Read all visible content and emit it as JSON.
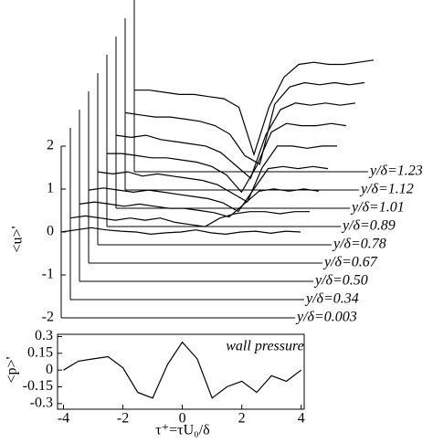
{
  "chart_data": [
    {
      "type": "waterfall",
      "ylabel": "<u>'",
      "x": [
        -4,
        -3.5,
        -3,
        -2.5,
        -2,
        -1.5,
        -1,
        -0.5,
        0,
        0.5,
        1,
        1.5,
        2,
        2.5,
        3,
        3.5,
        4
      ],
      "xlim": [
        -4,
        4
      ],
      "ylim": [
        -2,
        2
      ],
      "yticks": [
        -2,
        -1,
        0,
        1,
        2
      ],
      "color": "#000000",
      "series": [
        {
          "name": "y/δ=0.003",
          "values": [
            0,
            0.05,
            0.1,
            0.05,
            0.02,
            0,
            -0.05,
            -0.02,
            0,
            0.05,
            -0.02,
            -0.05,
            0,
            0.02,
            -0.03,
            0.02,
            0
          ]
        },
        {
          "name": "y/δ=0.34",
          "values": [
            -0.1,
            -0.05,
            -0.1,
            -0.15,
            -0.1,
            -0.15,
            -0.1,
            -0.2,
            -0.25,
            -0.3,
            -0.1,
            0,
            0.05,
            0.05,
            0,
            0.05,
            0.05
          ]
        },
        {
          "name": "y/δ=0.50",
          "values": [
            -0.2,
            -0.15,
            -0.2,
            -0.25,
            -0.2,
            -0.25,
            -0.3,
            -0.3,
            -0.35,
            -0.4,
            -0.5,
            -0.2,
            0.1,
            0.15,
            0.1,
            0.15,
            0.1
          ]
        },
        {
          "name": "y/δ=0.67",
          "values": [
            -0.3,
            -0.25,
            -0.3,
            -0.35,
            -0.3,
            -0.35,
            -0.4,
            -0.45,
            -0.5,
            -0.6,
            -0.8,
            -0.3,
            0.2,
            0.25,
            0.2,
            0.25,
            0.2
          ]
        },
        {
          "name": "y/δ=0.78",
          "values": [
            -0.3,
            -0.35,
            -0.3,
            -0.4,
            -0.35,
            -0.4,
            -0.45,
            -0.5,
            -0.6,
            -0.8,
            -1.0,
            -0.2,
            0.3,
            0.3,
            0.25,
            0.3,
            0.3
          ]
        },
        {
          "name": "y/δ=0.89",
          "values": [
            -0.3,
            -0.3,
            -0.35,
            -0.4,
            -0.4,
            -0.45,
            -0.5,
            -0.6,
            -0.8,
            -1.2,
            -0.6,
            0.2,
            0.4,
            0.35,
            0.35,
            0.4,
            0.35
          ]
        },
        {
          "name": "y/δ=1.01",
          "values": [
            -0.3,
            -0.35,
            -0.3,
            -0.4,
            -0.45,
            -0.5,
            -0.55,
            -0.7,
            -1.0,
            -1.3,
            -0.3,
            0.3,
            0.45,
            0.4,
            0.45,
            0.4,
            0.45
          ]
        },
        {
          "name": "y/δ=1.12",
          "values": [
            -0.2,
            -0.25,
            -0.3,
            -0.3,
            -0.35,
            -0.4,
            -0.5,
            -0.7,
            -1.2,
            -1.4,
            0,
            0.4,
            0.5,
            0.45,
            0.5,
            0.45,
            0.5
          ]
        },
        {
          "name": "y/δ=1.23",
          "values": [
            -0.1,
            -0.1,
            -0.15,
            -0.2,
            -0.2,
            -0.25,
            -0.3,
            -0.5,
            -1.6,
            -0.5,
            0.2,
            0.5,
            0.55,
            0.5,
            0.5,
            0.55,
            0.6
          ]
        }
      ]
    },
    {
      "type": "line",
      "title": "wall pressure",
      "xlabel": "τ⁺=τU₀/δ",
      "ylabel": "<p>'",
      "x": [
        -4,
        -3.5,
        -3,
        -2.5,
        -2,
        -1.5,
        -1,
        -0.5,
        0,
        0.5,
        1,
        1.5,
        2,
        2.5,
        3,
        3.5,
        4
      ],
      "values": [
        0,
        0.08,
        0.1,
        0.12,
        0.02,
        -0.2,
        -0.25,
        0.05,
        0.25,
        0.1,
        -0.25,
        -0.15,
        -0.1,
        -0.2,
        -0.05,
        -0.1,
        0
      ],
      "color": "#000000",
      "xlim": [
        -4.2,
        4.1
      ],
      "xticks": [
        -4,
        -2,
        0,
        2,
        4
      ],
      "ylim": [
        -0.35,
        0.32
      ],
      "yticks": [
        -0.3,
        -0.15,
        0,
        0.15,
        0.3
      ]
    }
  ]
}
